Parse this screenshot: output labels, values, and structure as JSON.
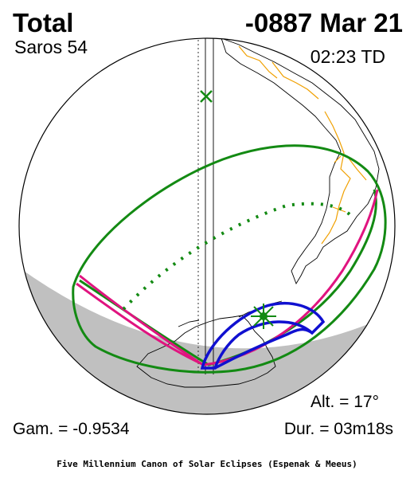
{
  "header": {
    "eclipse_type": "Total",
    "date": "-0887 Mar 21",
    "saros": "Saros  54",
    "time": "02:23 TD"
  },
  "footer": {
    "altitude": "Alt. = 17°",
    "gamma": "Gam. = -0.9534",
    "duration": "Dur. = 03m18s",
    "credit": "Five Millennium Canon of Solar Eclipses (Espenak & Meeus)"
  },
  "colors": {
    "penumbral_limits": "#138a13",
    "totality_path": "#e0147f",
    "sunrise_sunset_curves": "#1010d0",
    "coastlines": "#000000",
    "borders": "#f0a000",
    "night_side": "#c0c0c0",
    "greatest_eclipse_marker": "#138a13",
    "subsolar_marker": "#138a13"
  },
  "icons": {
    "greatest_eclipse": "star-icon",
    "subsolar_point": "x-cross-icon"
  }
}
